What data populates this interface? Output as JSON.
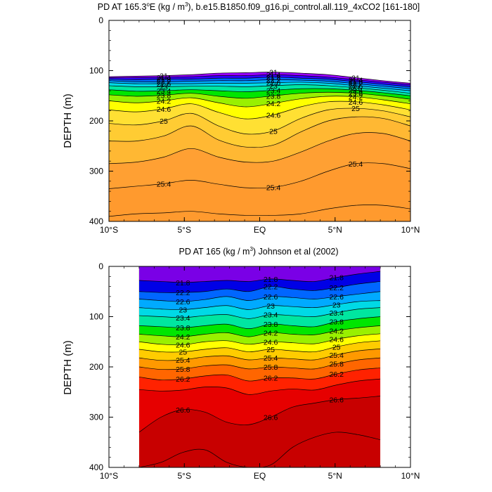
{
  "chart_data": [
    {
      "type": "contour",
      "title": "PD AT 165.3°E (kg / m³), b.e15.B1850.f09_g16.pi_control.all.119_4xCO2 [161-180]",
      "title_parts": {
        "a": "PD AT 165.3",
        "sup1": "o",
        "b": "E (kg / m",
        "sup2": "3",
        "c": "), b.e15.B1850.f09_g16.pi_control.all.119_4xCO2 [161-180]"
      },
      "ylabel": "DEPTH (m)",
      "x_ticks": [
        "10°S",
        "5°S",
        "EQ",
        "5°N",
        "10°N"
      ],
      "x_tick_values": [
        -10,
        -5,
        0,
        5,
        10
      ],
      "y_ticks": [
        "0",
        "100",
        "200",
        "300",
        "400"
      ],
      "y_tick_values": [
        0,
        100,
        200,
        300,
        400
      ],
      "xlim": [
        -10,
        10
      ],
      "ylim": [
        400,
        0
      ],
      "levels": [
        {
          "value": 21,
          "color": "#ffffff",
          "label": "21",
          "depth": [
            112,
            111,
            110,
            108,
            105,
            104,
            103,
            105,
            108,
            114,
            120,
            125
          ]
        },
        {
          "value": 21.4,
          "color": "#cc00ff",
          "label": "21.4",
          "depth": [
            114,
            114,
            113,
            112,
            110,
            110,
            108,
            110,
            113,
            118,
            123,
            128
          ]
        },
        {
          "value": 21.8,
          "color": "#9900ff",
          "label": "21.8",
          "depth": [
            117,
            118,
            117,
            117,
            115,
            115,
            113,
            115,
            117,
            122,
            127,
            132
          ]
        },
        {
          "value": 22.2,
          "color": "#3300ff",
          "label": "22.2",
          "depth": [
            120,
            122,
            122,
            121,
            120,
            120,
            118,
            119,
            121,
            126,
            131,
            136
          ]
        },
        {
          "value": 22.6,
          "color": "#0066ff",
          "label": "22.6",
          "depth": [
            124,
            126,
            126,
            126,
            125,
            125,
            124,
            123,
            125,
            130,
            135,
            140
          ]
        },
        {
          "value": 23,
          "color": "#00aaff",
          "label": "23",
          "depth": [
            130,
            132,
            132,
            131,
            131,
            132,
            130,
            128,
            130,
            134,
            139,
            145
          ]
        },
        {
          "value": 23.4,
          "color": "#00d9e6",
          "label": "23.4",
          "depth": [
            138,
            141,
            140,
            138,
            140,
            142,
            139,
            136,
            136,
            139,
            144,
            150
          ]
        },
        {
          "value": 23.8,
          "color": "#00e6a0",
          "label": "23.8",
          "depth": [
            148,
            151,
            149,
            145,
            151,
            155,
            150,
            145,
            143,
            145,
            150,
            157
          ]
        },
        {
          "value": 24.2,
          "color": "#00e600",
          "label": "24.2",
          "depth": [
            160,
            164,
            160,
            154,
            164,
            172,
            165,
            156,
            151,
            152,
            158,
            166
          ]
        },
        {
          "value": 24.6,
          "color": "#99f000",
          "label": "24.6",
          "depth": [
            178,
            182,
            176,
            166,
            183,
            196,
            188,
            172,
            162,
            162,
            168,
            178
          ]
        },
        {
          "value": 25,
          "color": "#ffff00",
          "label": "25",
          "depth": [
            205,
            208,
            200,
            185,
            210,
            226,
            220,
            195,
            178,
            175,
            180,
            192
          ]
        },
        {
          "value": 25.2,
          "color": "#ffe033",
          "label": "",
          "depth": [
            240,
            240,
            230,
            210,
            238,
            252,
            248,
            222,
            200,
            192,
            195,
            210
          ]
        },
        {
          "value": 25.3,
          "color": "#ffcc33",
          "label": "",
          "depth": [
            285,
            282,
            272,
            255,
            272,
            282,
            280,
            262,
            240,
            225,
            225,
            240
          ]
        },
        {
          "value": 25.4,
          "color": "#ffb833",
          "label": "25.4",
          "depth": [
            335,
            330,
            325,
            318,
            326,
            333,
            332,
            320,
            300,
            285,
            285,
            295
          ]
        },
        {
          "value": 25.6,
          "color": "#ffa033",
          "label": "",
          "depth": [
            390,
            385,
            383,
            380,
            385,
            388,
            388,
            385,
            375,
            368,
            368,
            375
          ]
        }
      ],
      "deep_color": "#ff9a2e"
    },
    {
      "type": "contour",
      "title": "PD AT 165 (kg / m³) Johnson et al (2002)",
      "title_parts": {
        "a": "PD AT 165 (kg / m",
        "sup": "3",
        "b": ") Johnson et al (2002)"
      },
      "ylabel": "DEPTH (m)",
      "x_ticks": [
        "10°S",
        "5°S",
        "EQ",
        "5°N",
        "10°N"
      ],
      "x_tick_values": [
        -10,
        -5,
        0,
        5,
        10
      ],
      "y_ticks": [
        "0",
        "100",
        "200",
        "300",
        "400"
      ],
      "y_tick_values": [
        0,
        100,
        200,
        300,
        400
      ],
      "xlim": [
        -10,
        10
      ],
      "ylim": [
        400,
        0
      ],
      "data_xlim": [
        -8,
        8
      ],
      "levels": [
        {
          "value": 21.4,
          "color": "#ff00ff",
          "label": "",
          "depth": [
            0,
            0,
            0,
            0,
            0,
            0,
            0,
            0,
            0,
            0,
            0,
            0
          ]
        },
        {
          "value": 21.8,
          "color": "#cc00ee",
          "label": "21.8",
          "depth": [
            28,
            30,
            32,
            30,
            28,
            30,
            25,
            28,
            30,
            22,
            15,
            10
          ]
        },
        {
          "value": 22.2,
          "color": "#7a00e6",
          "label": "22.2",
          "depth": [
            50,
            52,
            52,
            50,
            45,
            50,
            40,
            45,
            48,
            42,
            35,
            30
          ]
        },
        {
          "value": 22.6,
          "color": "#0000e6",
          "label": "22.6",
          "depth": [
            65,
            68,
            70,
            66,
            60,
            68,
            60,
            62,
            65,
            60,
            55,
            50
          ]
        },
        {
          "value": 23,
          "color": "#0066ff",
          "label": "23",
          "depth": [
            82,
            85,
            86,
            82,
            78,
            86,
            78,
            80,
            82,
            76,
            70,
            68
          ]
        },
        {
          "value": 23.4,
          "color": "#00aaff",
          "label": "23.4",
          "depth": [
            98,
            100,
            102,
            98,
            96,
            104,
            96,
            98,
            100,
            92,
            85,
            82
          ]
        },
        {
          "value": 23.8,
          "color": "#00d9e6",
          "label": "23.8",
          "depth": [
            118,
            120,
            122,
            118,
            115,
            124,
            115,
            118,
            120,
            110,
            104,
            100
          ]
        },
        {
          "value": 24.2,
          "color": "#00e6a0",
          "label": "24.2",
          "depth": [
            135,
            138,
            140,
            135,
            132,
            140,
            132,
            135,
            136,
            128,
            122,
            118
          ]
        },
        {
          "value": 24.6,
          "color": "#00e600",
          "label": "24.6",
          "depth": [
            150,
            155,
            156,
            150,
            148,
            155,
            150,
            152,
            154,
            145,
            138,
            134
          ]
        },
        {
          "value": 25,
          "color": "#99f000",
          "label": "25",
          "depth": [
            165,
            170,
            170,
            165,
            162,
            170,
            165,
            168,
            170,
            160,
            152,
            148
          ]
        },
        {
          "value": 25.4,
          "color": "#ffff00",
          "label": "25.4",
          "depth": [
            182,
            187,
            186,
            180,
            178,
            186,
            182,
            184,
            186,
            176,
            168,
            164
          ]
        },
        {
          "value": 25.8,
          "color": "#ffcc00",
          "label": "25.8",
          "depth": [
            200,
            205,
            204,
            198,
            196,
            204,
            200,
            202,
            204,
            194,
            186,
            182
          ]
        },
        {
          "value": 26.2,
          "color": "#ff9900",
          "label": "26.2",
          "depth": [
            220,
            226,
            224,
            218,
            216,
            228,
            222,
            222,
            224,
            214,
            206,
            202
          ]
        },
        {
          "value": 26.4,
          "color": "#ff6600",
          "label": "",
          "depth": [
            245,
            248,
            246,
            240,
            242,
            255,
            248,
            244,
            246,
            236,
            228,
            224
          ]
        },
        {
          "value": 26.6,
          "color": "#ff2200",
          "label": "26.6",
          "depth": [
            330,
            300,
            285,
            290,
            310,
            315,
            300,
            280,
            272,
            265,
            262,
            258
          ]
        },
        {
          "value": 26.8,
          "color": "#e60000",
          "label": "",
          "depth": [
            400,
            390,
            370,
            365,
            390,
            400,
            395,
            360,
            340,
            330,
            335,
            345
          ]
        }
      ],
      "deep_color": "#c80000"
    }
  ]
}
